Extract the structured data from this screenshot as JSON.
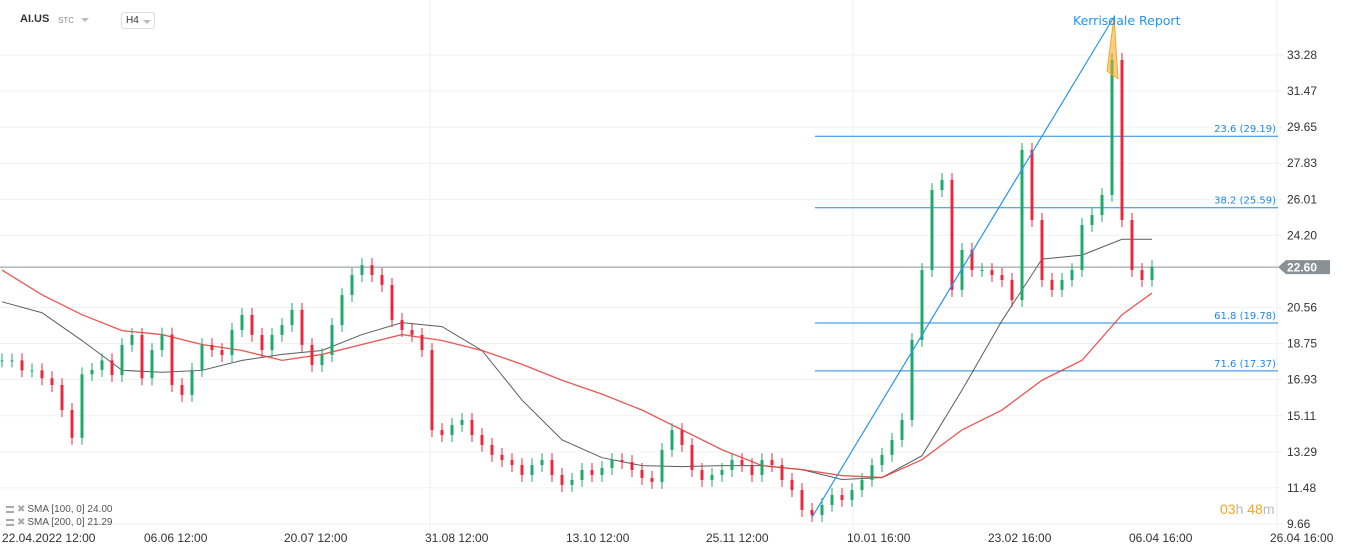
{
  "header": {
    "symbol": "AI.US",
    "market": "STC",
    "timeframe": "H4"
  },
  "indicators": [
    {
      "label": "SMA [100,  0] 24.00",
      "color": "#333333"
    },
    {
      "label": "SMA [200,  0] 21.29",
      "color": "#e53935"
    }
  ],
  "countdown": {
    "hours": "03",
    "h": "h",
    "minutes": "48",
    "m": "m"
  },
  "annotation": {
    "text": "Kerrisdale Report",
    "color": "#2196f3"
  },
  "current_price": {
    "label": "22.60",
    "value": 22.6,
    "color": "#8a9196"
  },
  "colors": {
    "up": "#1faa6b",
    "down": "#e8283c",
    "fib": "#1e88e5",
    "trend": "#2196f3",
    "sma100": "#333333",
    "sma200": "#e53935",
    "arrow": "#f5a623"
  },
  "chart_data": {
    "type": "candlestick",
    "title": "",
    "ylim": [
      9.66,
      33.28
    ],
    "y_ticks": [
      "33.28",
      "31.47",
      "29.65",
      "27.83",
      "26.01",
      "24.20",
      "20.56",
      "18.75",
      "16.93",
      "15.11",
      "13.29",
      "11.48",
      "9.66"
    ],
    "x_ticks": [
      "22.04.2022  12:00",
      "06.06  12:00",
      "20.07  12:00",
      "31.08  12:00",
      "13.10  12:00",
      "25.11  12:00",
      "10.01  16:00",
      "23.02  16:00",
      "06.04  16:00",
      "26.04  16:00"
    ],
    "closes": [
      17.9,
      17.9,
      17.4,
      17.4,
      17.0,
      16.66,
      15.4,
      14.0,
      17.2,
      17.42,
      17.9,
      17.16,
      18.68,
      19.18,
      17.0,
      18.42,
      19.2,
      16.66,
      16.16,
      17.42,
      18.68,
      18.42,
      18.17,
      19.43,
      20.19,
      19.18,
      18.42,
      19.18,
      19.68,
      20.44,
      18.68,
      17.67,
      18.17,
      19.68,
      21.19,
      22.2,
      22.7,
      22.2,
      21.7,
      19.93,
      19.43,
      19.18,
      18.42,
      14.39,
      14.14,
      14.65,
      14.9,
      14.14,
      13.64,
      13.14,
      12.88,
      12.63,
      12.13,
      12.63,
      12.88,
      12.13,
      11.63,
      11.88,
      12.38,
      12.13,
      12.48,
      12.88,
      12.78,
      12.38,
      11.98,
      11.78,
      13.39,
      14.39,
      13.64,
      12.38,
      11.88,
      12.13,
      12.38,
      12.88,
      12.63,
      12.13,
      12.88,
      12.63,
      11.88,
      11.37,
      10.37,
      10.11,
      10.62,
      11.12,
      10.87,
      11.37,
      11.88,
      12.63,
      13.14,
      13.89,
      14.9,
      18.93,
      22.45,
      26.48,
      26.99,
      21.45,
      23.46,
      22.45,
      22.45,
      22.2,
      21.95,
      20.94,
      28.5,
      24.97,
      21.95,
      21.45,
      21.95,
      22.45,
      24.72,
      25.22,
      26.23,
      33.03,
      24.97,
      22.45,
      21.95,
      22.6
    ],
    "sma_sample_every": 4,
    "series": [
      {
        "name": "SMA [100,  0]",
        "values": [
          20.85,
          20.3,
          18.9,
          17.4,
          17.3,
          17.4,
          17.9,
          18.2,
          18.4,
          19.2,
          19.8,
          19.6,
          18.4,
          15.9,
          13.9,
          13.0,
          12.6,
          12.55,
          12.6,
          12.6,
          12.4,
          11.9,
          12.0,
          13.1,
          16.4,
          19.9,
          23.0,
          23.2,
          24.0,
          24.0
        ]
      },
      {
        "name": "SMA [200,  0]",
        "values": [
          22.45,
          21.2,
          20.2,
          19.4,
          19.2,
          18.7,
          18.4,
          17.9,
          18.2,
          18.7,
          19.2,
          18.9,
          18.4,
          17.7,
          16.9,
          16.2,
          15.4,
          14.4,
          13.4,
          12.6,
          12.4,
          12.1,
          12.0,
          12.9,
          14.4,
          15.4,
          16.9,
          17.9,
          20.2,
          21.29
        ]
      }
    ],
    "fibonacci": [
      {
        "label": "23.6 (29.19)",
        "value": 29.19
      },
      {
        "label": "38.2 (25.59)",
        "value": 25.59
      },
      {
        "label": "61.8 (19.78)",
        "value": 19.78
      },
      {
        "label": "71.6 (17.37)",
        "value": 17.37
      }
    ],
    "trendline": {
      "from": {
        "candle": 81,
        "price": 10.0
      },
      "to": {
        "candle": 111,
        "price": 35.2
      }
    }
  }
}
